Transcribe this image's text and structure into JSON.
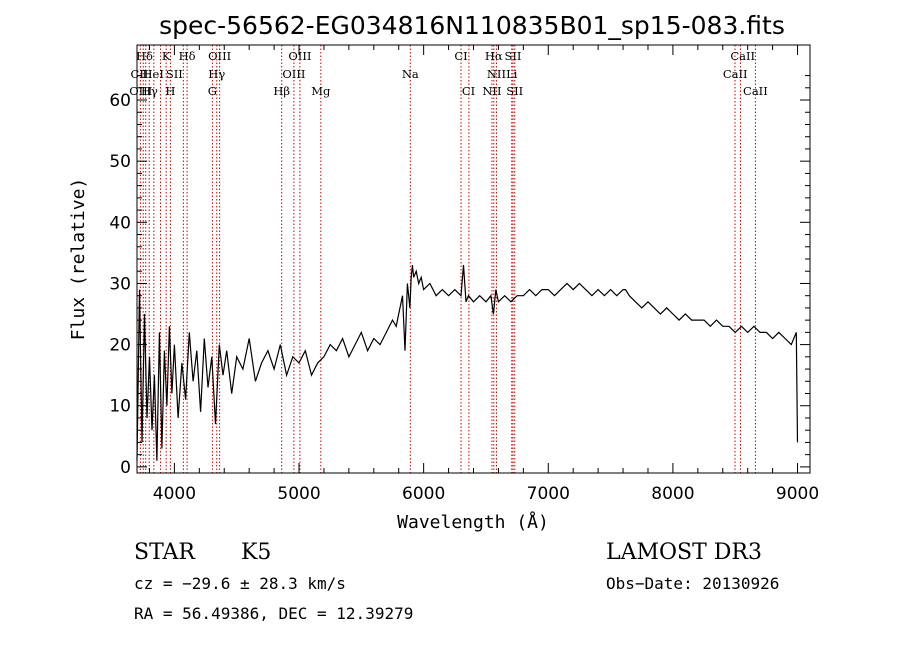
{
  "chart_data": {
    "type": "line",
    "title": "spec-56562-EG034816N110835B01_sp15-083.fits",
    "xlabel": "Wavelength (Å)",
    "ylabel": "Flux (relative)",
    "xlim": [
      3700,
      9100
    ],
    "ylim": [
      -1,
      69
    ],
    "xticks": [
      4000,
      5000,
      6000,
      7000,
      8000,
      9000
    ],
    "yticks": [
      0,
      10,
      20,
      30,
      40,
      50,
      60
    ],
    "series": [
      {
        "name": "flux",
        "x": [
          3700,
          3720,
          3740,
          3760,
          3780,
          3800,
          3820,
          3840,
          3860,
          3880,
          3900,
          3920,
          3940,
          3960,
          3980,
          4000,
          4030,
          4060,
          4090,
          4120,
          4150,
          4180,
          4210,
          4240,
          4270,
          4300,
          4330,
          4360,
          4390,
          4420,
          4460,
          4500,
          4550,
          4600,
          4650,
          4700,
          4750,
          4800,
          4850,
          4900,
          4950,
          5000,
          5050,
          5100,
          5150,
          5200,
          5250,
          5300,
          5350,
          5400,
          5450,
          5500,
          5550,
          5600,
          5650,
          5700,
          5750,
          5780,
          5800,
          5830,
          5850,
          5870,
          5890,
          5900,
          5910,
          5920,
          5940,
          5960,
          5980,
          6000,
          6050,
          6100,
          6150,
          6200,
          6250,
          6300,
          6320,
          6340,
          6360,
          6400,
          6450,
          6500,
          6540,
          6560,
          6580,
          6600,
          6650,
          6700,
          6750,
          6800,
          6850,
          6900,
          6950,
          7000,
          7050,
          7100,
          7150,
          7200,
          7250,
          7300,
          7350,
          7400,
          7450,
          7500,
          7550,
          7600,
          7620,
          7650,
          7700,
          7750,
          7800,
          7850,
          7900,
          7950,
          8000,
          8050,
          8100,
          8150,
          8200,
          8250,
          8300,
          8350,
          8400,
          8450,
          8500,
          8550,
          8600,
          8650,
          8700,
          8750,
          8800,
          8850,
          8900,
          8950,
          8990,
          9000
        ],
        "y": [
          1,
          29,
          4,
          25,
          8,
          18,
          6,
          15,
          1,
          22,
          3,
          19,
          10,
          23,
          12,
          20,
          8,
          17,
          11,
          22,
          14,
          19,
          9,
          21,
          13,
          18,
          7,
          20,
          15,
          19,
          12,
          18,
          16,
          21,
          14,
          17,
          19,
          16,
          20,
          15,
          18,
          17,
          19,
          15,
          17,
          18,
          20,
          19,
          21,
          18,
          20,
          22,
          19,
          21,
          20,
          22,
          24,
          23,
          25,
          28,
          19,
          30,
          26,
          31,
          33,
          31,
          32,
          30,
          31,
          29,
          30,
          28,
          29,
          28,
          29,
          28,
          33,
          27,
          28,
          27,
          28,
          27,
          28,
          25,
          29,
          27,
          28,
          27,
          28,
          28,
          29,
          28,
          29,
          29,
          28,
          29,
          30,
          29,
          30,
          29,
          28,
          29,
          28,
          29,
          28,
          29,
          29,
          28,
          27,
          26,
          27,
          26,
          25,
          26,
          25,
          24,
          25,
          24,
          24,
          24,
          23,
          24,
          23,
          23,
          22,
          23,
          22,
          23,
          22,
          22,
          21,
          22,
          21,
          20,
          22,
          4
        ]
      }
    ],
    "line_labels": [
      {
        "text": "Hδ",
        "wave": 3760,
        "row": 0
      },
      {
        "text": "K",
        "wave": 3934,
        "row": 0
      },
      {
        "text": "Hδ",
        "wave": 4102,
        "row": 0
      },
      {
        "text": "OIII",
        "wave": 4363,
        "row": 0
      },
      {
        "text": "OIII",
        "wave": 5007,
        "row": 0
      },
      {
        "text": "CI",
        "wave": 6300,
        "row": 0
      },
      {
        "text": "Hα",
        "wave": 6563,
        "row": 0
      },
      {
        "text": "SII",
        "wave": 6717,
        "row": 0
      },
      {
        "text": "CaII",
        "wave": 8560,
        "row": 0
      },
      {
        "text": "CII",
        "wave": 3720,
        "row": 1
      },
      {
        "text": "HeI",
        "wave": 3830,
        "row": 1
      },
      {
        "text": "SII",
        "wave": 4000,
        "row": 1
      },
      {
        "text": "Hγ",
        "wave": 4340,
        "row": 1
      },
      {
        "text": "OIII",
        "wave": 4959,
        "row": 1
      },
      {
        "text": "NII",
        "wave": 6584,
        "row": 1
      },
      {
        "text": "Li",
        "wave": 6707,
        "row": 1
      },
      {
        "text": "CaII",
        "wave": 8500,
        "row": 1
      },
      {
        "text": "OIII",
        "wave": 3730,
        "row": 2
      },
      {
        "text": "Hγ",
        "wave": 3800,
        "row": 2
      },
      {
        "text": "H",
        "wave": 3968,
        "row": 2
      },
      {
        "text": "G",
        "wave": 4305,
        "row": 2
      },
      {
        "text": "Hβ",
        "wave": 4861,
        "row": 2
      },
      {
        "text": "Mg",
        "wave": 5175,
        "row": 2
      },
      {
        "text": "Na",
        "wave": 5893,
        "row": 1
      },
      {
        "text": "CI",
        "wave": 6360,
        "row": 2
      },
      {
        "text": "NII",
        "wave": 6548,
        "row": 2
      },
      {
        "text": "SII",
        "wave": 6731,
        "row": 2
      },
      {
        "text": "CaII",
        "wave": 8662,
        "row": 2
      }
    ],
    "line_positions": [
      3727,
      3750,
      3770,
      3798,
      3835,
      3889,
      3934,
      3968,
      4072,
      4102,
      4305,
      4340,
      4363,
      4861,
      4959,
      5007,
      5175,
      5893,
      6300,
      6363,
      6548,
      6563,
      6584,
      6707,
      6717,
      6731,
      8498,
      8542,
      8662
    ]
  },
  "info": {
    "object_class": "STAR",
    "subclass": "K5",
    "survey": "LAMOST DR3",
    "cz": "cz = −29.6 ± 28.3 km/s",
    "obs_date": "Obs−Date: 20130926",
    "coords": "RA =  56.49386, DEC =  12.39279"
  },
  "colors": {
    "line_marker": "#cc0000",
    "spectrum": "#000000"
  }
}
